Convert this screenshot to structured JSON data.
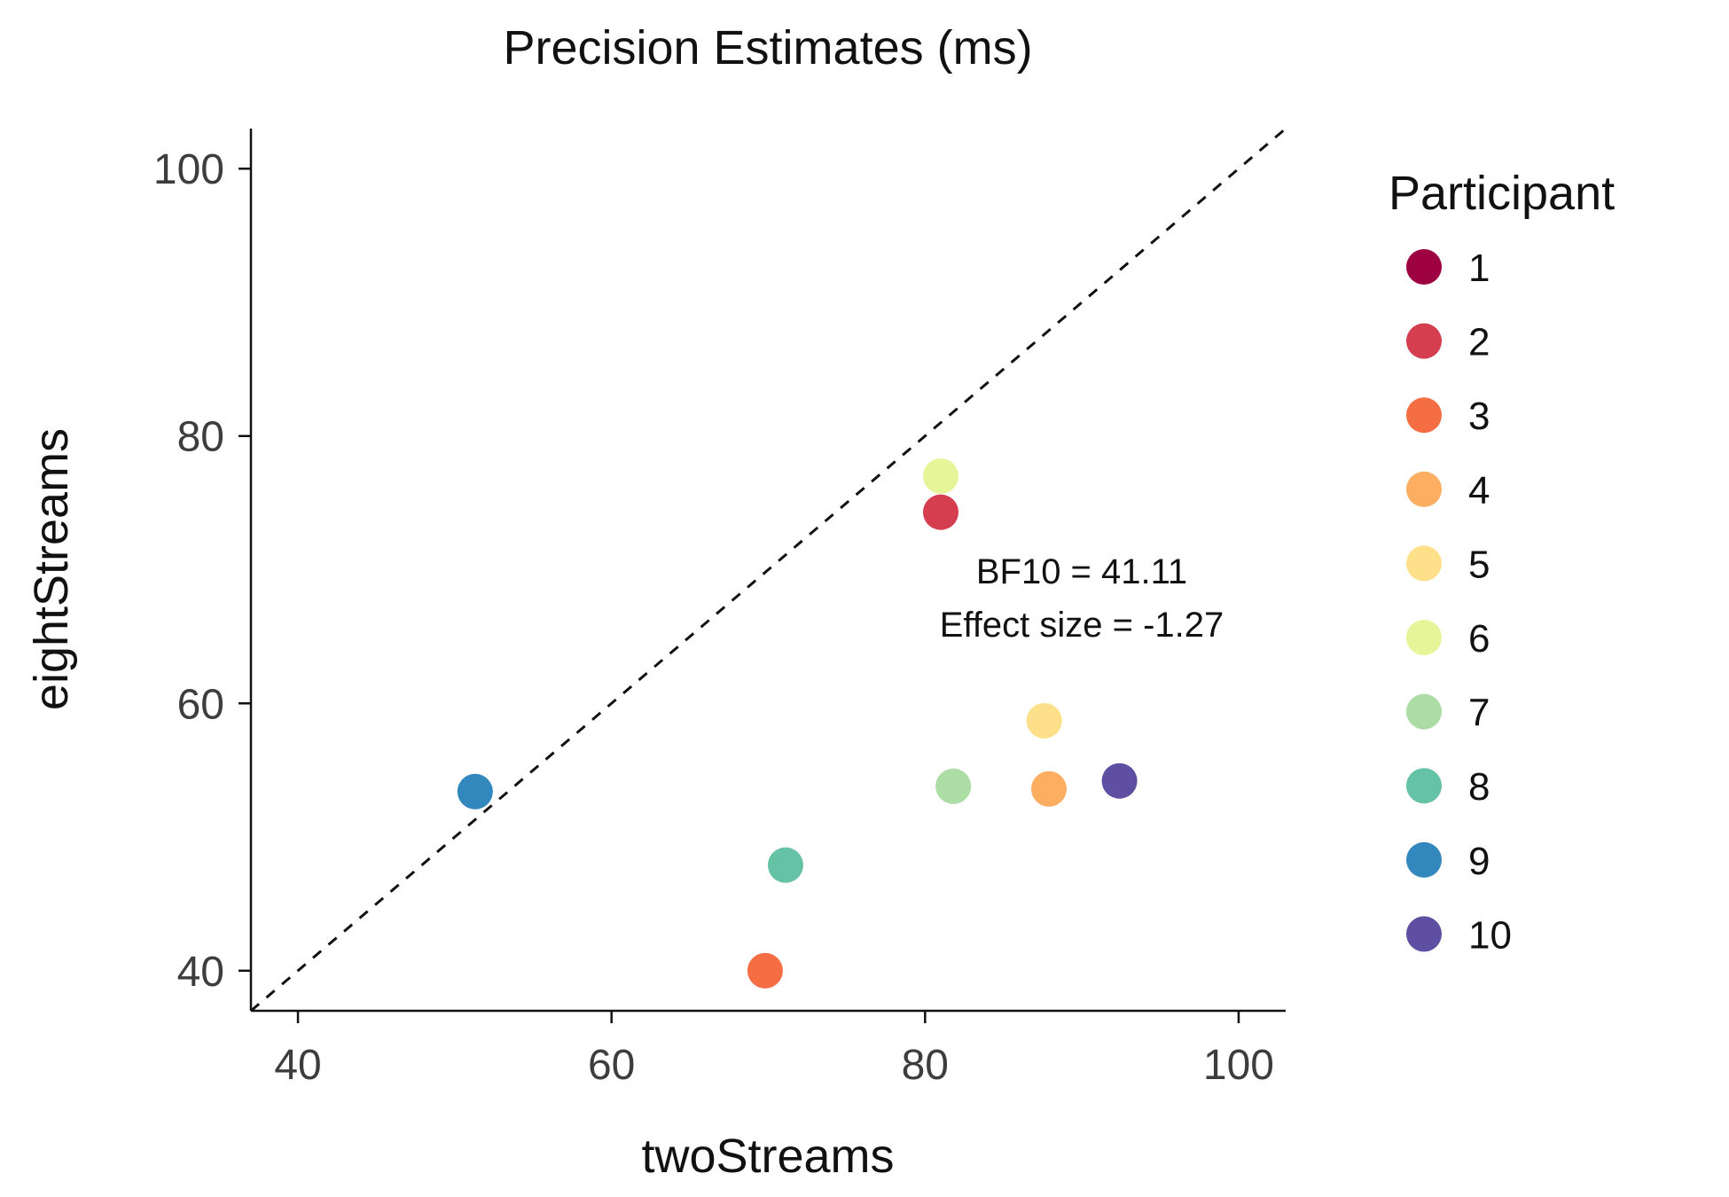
{
  "chart_data": {
    "type": "scatter",
    "title": "Precision Estimates (ms)",
    "xlabel": "twoStreams",
    "ylabel": "eightStreams",
    "xlim": [
      37,
      103
    ],
    "ylim": [
      37,
      103
    ],
    "xticks": [
      40,
      60,
      80,
      100
    ],
    "yticks": [
      40,
      60,
      80,
      100
    ],
    "reference_line": "y = x (dashed)",
    "grid": false,
    "legend": {
      "title": "Participant",
      "placement": "right"
    },
    "annotations": [
      "BF10 = 41.11",
      "Effect size = -1.27"
    ],
    "points": [
      {
        "participant": "2",
        "x": 81.0,
        "y": 74.3,
        "color": "#d53e4f"
      },
      {
        "participant": "3",
        "x": 69.8,
        "y": 40.0,
        "color": "#f46d43"
      },
      {
        "participant": "4",
        "x": 87.9,
        "y": 53.6,
        "color": "#fdae61"
      },
      {
        "participant": "5",
        "x": 87.6,
        "y": 58.7,
        "color": "#fee08b"
      },
      {
        "participant": "6",
        "x": 81.0,
        "y": 77.0,
        "color": "#e6f598"
      },
      {
        "participant": "7",
        "x": 81.8,
        "y": 53.8,
        "color": "#abdda4"
      },
      {
        "participant": "8",
        "x": 71.1,
        "y": 47.9,
        "color": "#66c2a5"
      },
      {
        "participant": "9",
        "x": 51.3,
        "y": 53.4,
        "color": "#3288bd"
      },
      {
        "participant": "10",
        "x": 92.4,
        "y": 54.2,
        "color": "#5e4fa2"
      }
    ],
    "legend_entries": [
      {
        "label": "1",
        "color": "#9e0142"
      },
      {
        "label": "2",
        "color": "#d53e4f"
      },
      {
        "label": "3",
        "color": "#f46d43"
      },
      {
        "label": "4",
        "color": "#fdae61"
      },
      {
        "label": "5",
        "color": "#fee08b"
      },
      {
        "label": "6",
        "color": "#e6f598"
      },
      {
        "label": "7",
        "color": "#abdda4"
      },
      {
        "label": "8",
        "color": "#66c2a5"
      },
      {
        "label": "9",
        "color": "#3288bd"
      },
      {
        "label": "10",
        "color": "#5e4fa2"
      }
    ]
  }
}
